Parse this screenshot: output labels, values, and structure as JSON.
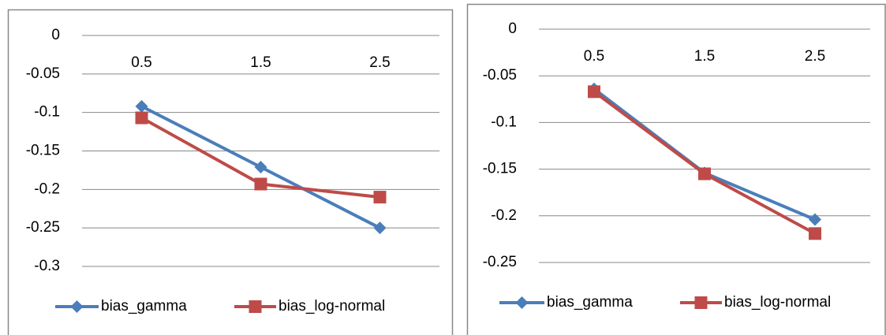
{
  "chart_data": [
    {
      "type": "line",
      "categories": [
        "0.5",
        "1.5",
        "2.5"
      ],
      "series": [
        {
          "name": "bias_gamma",
          "color": "#4a7ebb",
          "marker": "diamond",
          "values": [
            -0.092,
            -0.171,
            -0.25
          ]
        },
        {
          "name": "bias_log-normal",
          "color": "#be4b48",
          "marker": "square",
          "values": [
            -0.107,
            -0.193,
            -0.21
          ]
        }
      ],
      "ylim": [
        -0.3,
        0
      ],
      "yticks": [
        0,
        -0.05,
        -0.1,
        -0.15,
        -0.2,
        -0.25,
        -0.3
      ],
      "grid": true,
      "legend": "bottom"
    },
    {
      "type": "line",
      "categories": [
        "0.5",
        "1.5",
        "2.5"
      ],
      "series": [
        {
          "name": "bias_gamma",
          "color": "#4a7ebb",
          "marker": "diamond",
          "values": [
            -0.064,
            -0.154,
            -0.204
          ]
        },
        {
          "name": "bias_log-normal",
          "color": "#be4b48",
          "marker": "square",
          "values": [
            -0.067,
            -0.155,
            -0.219
          ]
        }
      ],
      "ylim": [
        -0.25,
        0
      ],
      "yticks": [
        0,
        -0.05,
        -0.1,
        -0.15,
        -0.2,
        -0.25
      ],
      "grid": true,
      "legend": "bottom"
    }
  ]
}
